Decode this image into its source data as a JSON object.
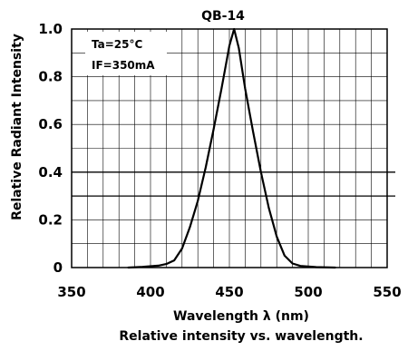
{
  "chart_data": {
    "type": "line",
    "title": "QB-14",
    "xlabel": "Wavelength λ (nm)",
    "ylabel": "Relative Radiant Intensity",
    "caption": "Relative intensity vs. wavelength.",
    "annotations": [
      "Ta=25°C",
      "IF=350mA"
    ],
    "xlim": [
      350,
      550
    ],
    "ylim": [
      0,
      1.0
    ],
    "x_ticks": [
      350,
      400,
      450,
      500,
      550
    ],
    "y_ticks": [
      0,
      0.2,
      0.4,
      0.6,
      0.8,
      1.0
    ],
    "x_tick_labels": [
      "350",
      "400",
      "450",
      "500",
      "550"
    ],
    "y_tick_labels": [
      "0",
      "0.2",
      "0.4",
      "0.6",
      "0.8",
      "1.0"
    ],
    "grid": true,
    "x_grid_step": 10,
    "y_grid_step": 0.1,
    "emphasized_y_gridlines": [
      0.3,
      0.4
    ],
    "series": [
      {
        "x": [
          386,
          395,
          405,
          410,
          415,
          420,
          425,
          430,
          435,
          440,
          445,
          450,
          453,
          456,
          460,
          465,
          470,
          475,
          480,
          485,
          490,
          495,
          505,
          517
        ],
        "y": [
          0.0,
          0.003,
          0.008,
          0.015,
          0.03,
          0.08,
          0.17,
          0.28,
          0.42,
          0.58,
          0.75,
          0.93,
          1.0,
          0.92,
          0.75,
          0.57,
          0.4,
          0.25,
          0.13,
          0.05,
          0.017,
          0.007,
          0.002,
          0.0
        ]
      }
    ]
  }
}
